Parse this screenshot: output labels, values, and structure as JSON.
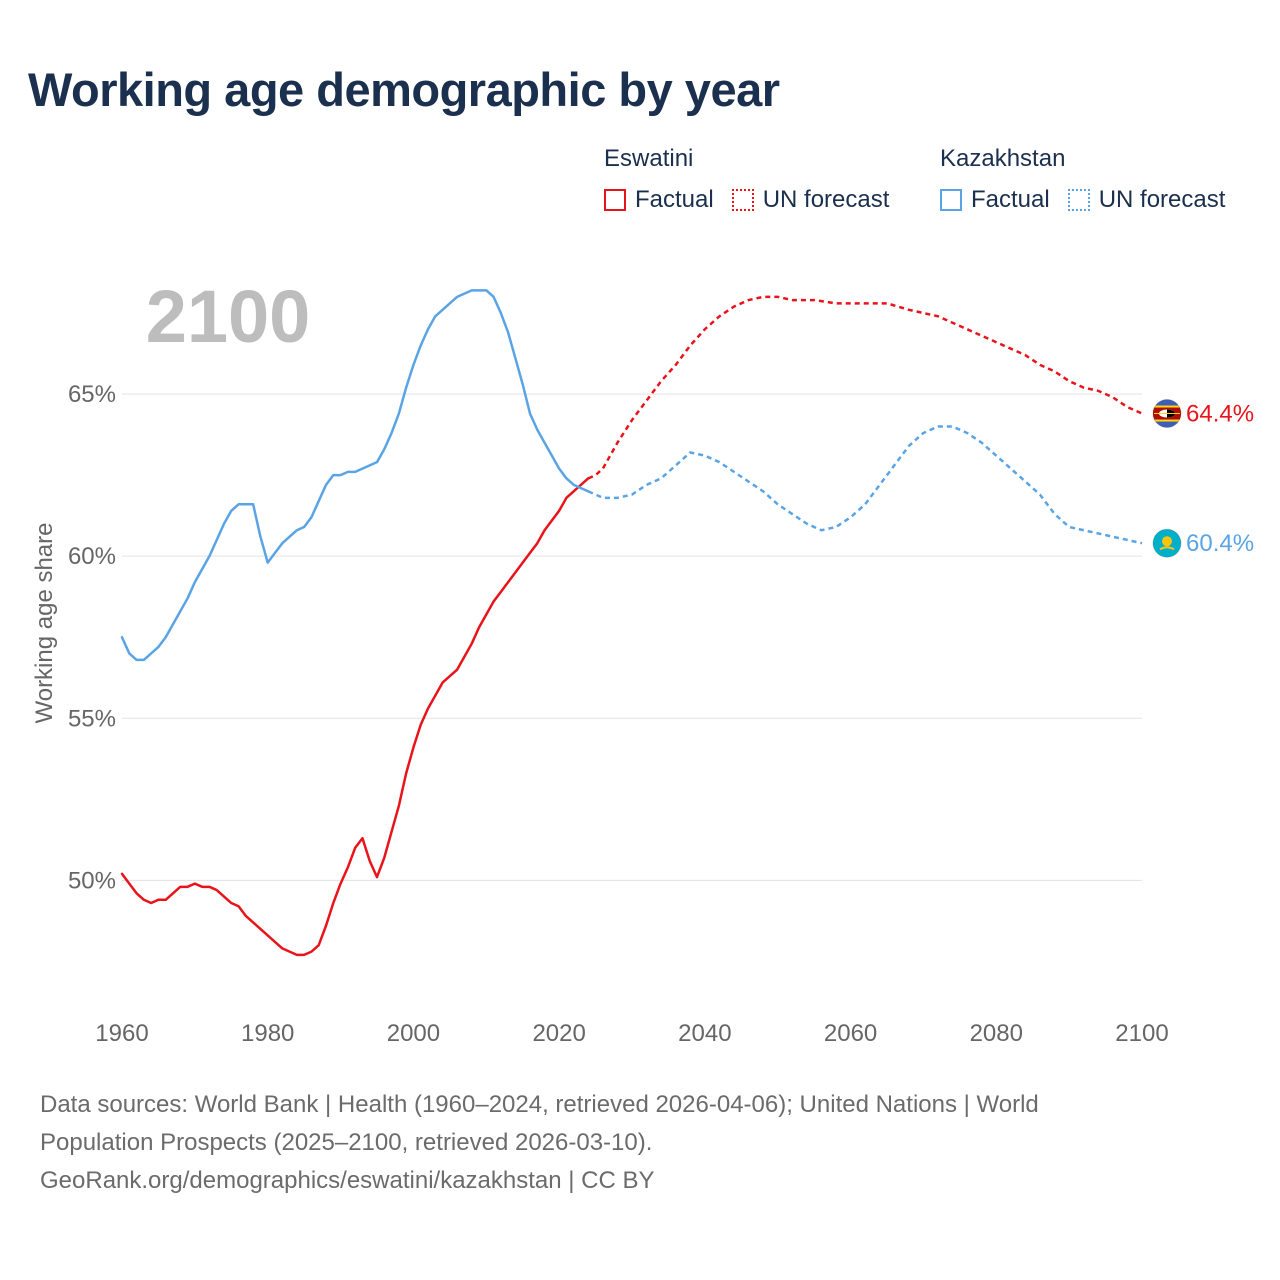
{
  "title": "Working age demographic by year",
  "legend": {
    "groups": [
      {
        "country": "Eswatini",
        "color": "#e8141a",
        "items": [
          {
            "label": "Factual",
            "style": "solid"
          },
          {
            "label": "UN forecast",
            "style": "dotted"
          }
        ]
      },
      {
        "country": "Kazakhstan",
        "color": "#5aa4e6",
        "items": [
          {
            "label": "Factual",
            "style": "solid"
          },
          {
            "label": "UN forecast",
            "style": "dotted"
          }
        ]
      }
    ]
  },
  "year_overlay": "2100",
  "footer": {
    "line1": "Data sources: World Bank | Health (1960–2024, retrieved 2026-04-06); United Nations | World",
    "line2": "Population Prospects (2025–2100, retrieved 2026-03-10).",
    "line3": "GeoRank.org/demographics/eswatini/kazakhstan | CC BY"
  },
  "chart_data": {
    "type": "line",
    "title": "Working age demographic by year",
    "xlabel": "",
    "ylabel": "Working age share",
    "xlim": [
      1960,
      2100
    ],
    "ylim": [
      46,
      70
    ],
    "x_ticks": [
      1960,
      1980,
      2000,
      2020,
      2040,
      2060,
      2080,
      2100
    ],
    "y_ticks": [
      50,
      55,
      60,
      65
    ],
    "y_tick_labels": [
      "50%",
      "55%",
      "60%",
      "65%"
    ],
    "grid": true,
    "factual_end_year": 2024,
    "series": [
      {
        "name": "Eswatini",
        "color": "#e8141a",
        "end_label": "64.4%",
        "flag_icon": "eswatini-flag-icon",
        "points": [
          [
            1960,
            50.2
          ],
          [
            1961,
            49.9
          ],
          [
            1962,
            49.6
          ],
          [
            1963,
            49.4
          ],
          [
            1964,
            49.3
          ],
          [
            1965,
            49.4
          ],
          [
            1966,
            49.4
          ],
          [
            1967,
            49.6
          ],
          [
            1968,
            49.8
          ],
          [
            1969,
            49.8
          ],
          [
            1970,
            49.9
          ],
          [
            1971,
            49.8
          ],
          [
            1972,
            49.8
          ],
          [
            1973,
            49.7
          ],
          [
            1974,
            49.5
          ],
          [
            1975,
            49.3
          ],
          [
            1976,
            49.2
          ],
          [
            1977,
            48.9
          ],
          [
            1978,
            48.7
          ],
          [
            1979,
            48.5
          ],
          [
            1980,
            48.3
          ],
          [
            1981,
            48.1
          ],
          [
            1982,
            47.9
          ],
          [
            1983,
            47.8
          ],
          [
            1984,
            47.7
          ],
          [
            1985,
            47.7
          ],
          [
            1986,
            47.8
          ],
          [
            1987,
            48.0
          ],
          [
            1988,
            48.6
          ],
          [
            1989,
            49.3
          ],
          [
            1990,
            49.9
          ],
          [
            1991,
            50.4
          ],
          [
            1992,
            51.0
          ],
          [
            1993,
            51.3
          ],
          [
            1994,
            50.6
          ],
          [
            1995,
            50.1
          ],
          [
            1996,
            50.7
          ],
          [
            1997,
            51.5
          ],
          [
            1998,
            52.3
          ],
          [
            1999,
            53.3
          ],
          [
            2000,
            54.1
          ],
          [
            2001,
            54.8
          ],
          [
            2002,
            55.3
          ],
          [
            2003,
            55.7
          ],
          [
            2004,
            56.1
          ],
          [
            2005,
            56.3
          ],
          [
            2006,
            56.5
          ],
          [
            2007,
            56.9
          ],
          [
            2008,
            57.3
          ],
          [
            2009,
            57.8
          ],
          [
            2010,
            58.2
          ],
          [
            2011,
            58.6
          ],
          [
            2012,
            58.9
          ],
          [
            2013,
            59.2
          ],
          [
            2014,
            59.5
          ],
          [
            2015,
            59.8
          ],
          [
            2016,
            60.1
          ],
          [
            2017,
            60.4
          ],
          [
            2018,
            60.8
          ],
          [
            2019,
            61.1
          ],
          [
            2020,
            61.4
          ],
          [
            2021,
            61.8
          ],
          [
            2022,
            62.0
          ],
          [
            2023,
            62.2
          ],
          [
            2024,
            62.4
          ],
          [
            2025,
            62.5
          ],
          [
            2026,
            62.7
          ],
          [
            2027,
            63.1
          ],
          [
            2028,
            63.5
          ],
          [
            2030,
            64.2
          ],
          [
            2032,
            64.8
          ],
          [
            2034,
            65.4
          ],
          [
            2036,
            65.9
          ],
          [
            2038,
            66.5
          ],
          [
            2040,
            67.0
          ],
          [
            2042,
            67.4
          ],
          [
            2044,
            67.7
          ],
          [
            2046,
            67.9
          ],
          [
            2048,
            68.0
          ],
          [
            2050,
            68.0
          ],
          [
            2052,
            67.9
          ],
          [
            2055,
            67.9
          ],
          [
            2058,
            67.8
          ],
          [
            2060,
            67.8
          ],
          [
            2062,
            67.8
          ],
          [
            2065,
            67.8
          ],
          [
            2068,
            67.6
          ],
          [
            2070,
            67.5
          ],
          [
            2072,
            67.4
          ],
          [
            2074,
            67.2
          ],
          [
            2076,
            67.0
          ],
          [
            2078,
            66.8
          ],
          [
            2080,
            66.6
          ],
          [
            2082,
            66.4
          ],
          [
            2084,
            66.2
          ],
          [
            2086,
            65.9
          ],
          [
            2088,
            65.7
          ],
          [
            2090,
            65.4
          ],
          [
            2092,
            65.2
          ],
          [
            2094,
            65.1
          ],
          [
            2096,
            64.9
          ],
          [
            2098,
            64.6
          ],
          [
            2100,
            64.4
          ]
        ]
      },
      {
        "name": "Kazakhstan",
        "color": "#5aa4e6",
        "end_label": "60.4%",
        "flag_icon": "kazakhstan-flag-icon",
        "points": [
          [
            1960,
            57.5
          ],
          [
            1961,
            57.0
          ],
          [
            1962,
            56.8
          ],
          [
            1963,
            56.8
          ],
          [
            1964,
            57.0
          ],
          [
            1965,
            57.2
          ],
          [
            1966,
            57.5
          ],
          [
            1967,
            57.9
          ],
          [
            1968,
            58.3
          ],
          [
            1969,
            58.7
          ],
          [
            1970,
            59.2
          ],
          [
            1971,
            59.6
          ],
          [
            1972,
            60.0
          ],
          [
            1973,
            60.5
          ],
          [
            1974,
            61.0
          ],
          [
            1975,
            61.4
          ],
          [
            1976,
            61.6
          ],
          [
            1977,
            61.6
          ],
          [
            1978,
            61.6
          ],
          [
            1979,
            60.6
          ],
          [
            1980,
            59.8
          ],
          [
            1981,
            60.1
          ],
          [
            1982,
            60.4
          ],
          [
            1983,
            60.6
          ],
          [
            1984,
            60.8
          ],
          [
            1985,
            60.9
          ],
          [
            1986,
            61.2
          ],
          [
            1987,
            61.7
          ],
          [
            1988,
            62.2
          ],
          [
            1989,
            62.5
          ],
          [
            1990,
            62.5
          ],
          [
            1991,
            62.6
          ],
          [
            1992,
            62.6
          ],
          [
            1993,
            62.7
          ],
          [
            1994,
            62.8
          ],
          [
            1995,
            62.9
          ],
          [
            1996,
            63.3
          ],
          [
            1997,
            63.8
          ],
          [
            1998,
            64.4
          ],
          [
            1999,
            65.2
          ],
          [
            2000,
            65.9
          ],
          [
            2001,
            66.5
          ],
          [
            2002,
            67.0
          ],
          [
            2003,
            67.4
          ],
          [
            2004,
            67.6
          ],
          [
            2005,
            67.8
          ],
          [
            2006,
            68.0
          ],
          [
            2007,
            68.1
          ],
          [
            2008,
            68.2
          ],
          [
            2009,
            68.2
          ],
          [
            2010,
            68.2
          ],
          [
            2011,
            68.0
          ],
          [
            2012,
            67.5
          ],
          [
            2013,
            66.9
          ],
          [
            2014,
            66.1
          ],
          [
            2015,
            65.3
          ],
          [
            2016,
            64.4
          ],
          [
            2017,
            63.9
          ],
          [
            2018,
            63.5
          ],
          [
            2019,
            63.1
          ],
          [
            2020,
            62.7
          ],
          [
            2021,
            62.4
          ],
          [
            2022,
            62.2
          ],
          [
            2023,
            62.1
          ],
          [
            2024,
            62.0
          ],
          [
            2025,
            61.9
          ],
          [
            2026,
            61.8
          ],
          [
            2028,
            61.8
          ],
          [
            2030,
            61.9
          ],
          [
            2032,
            62.2
          ],
          [
            2034,
            62.4
          ],
          [
            2036,
            62.8
          ],
          [
            2038,
            63.2
          ],
          [
            2040,
            63.1
          ],
          [
            2042,
            62.9
          ],
          [
            2044,
            62.6
          ],
          [
            2046,
            62.3
          ],
          [
            2048,
            62.0
          ],
          [
            2050,
            61.6
          ],
          [
            2052,
            61.3
          ],
          [
            2054,
            61.0
          ],
          [
            2056,
            60.8
          ],
          [
            2058,
            60.9
          ],
          [
            2060,
            61.2
          ],
          [
            2062,
            61.6
          ],
          [
            2064,
            62.2
          ],
          [
            2066,
            62.8
          ],
          [
            2068,
            63.4
          ],
          [
            2070,
            63.8
          ],
          [
            2072,
            64.0
          ],
          [
            2074,
            64.0
          ],
          [
            2076,
            63.8
          ],
          [
            2078,
            63.5
          ],
          [
            2080,
            63.1
          ],
          [
            2082,
            62.7
          ],
          [
            2084,
            62.3
          ],
          [
            2086,
            61.9
          ],
          [
            2088,
            61.3
          ],
          [
            2090,
            60.9
          ],
          [
            2092,
            60.8
          ],
          [
            2094,
            60.7
          ],
          [
            2096,
            60.6
          ],
          [
            2098,
            60.5
          ],
          [
            2100,
            60.4
          ]
        ]
      }
    ]
  }
}
